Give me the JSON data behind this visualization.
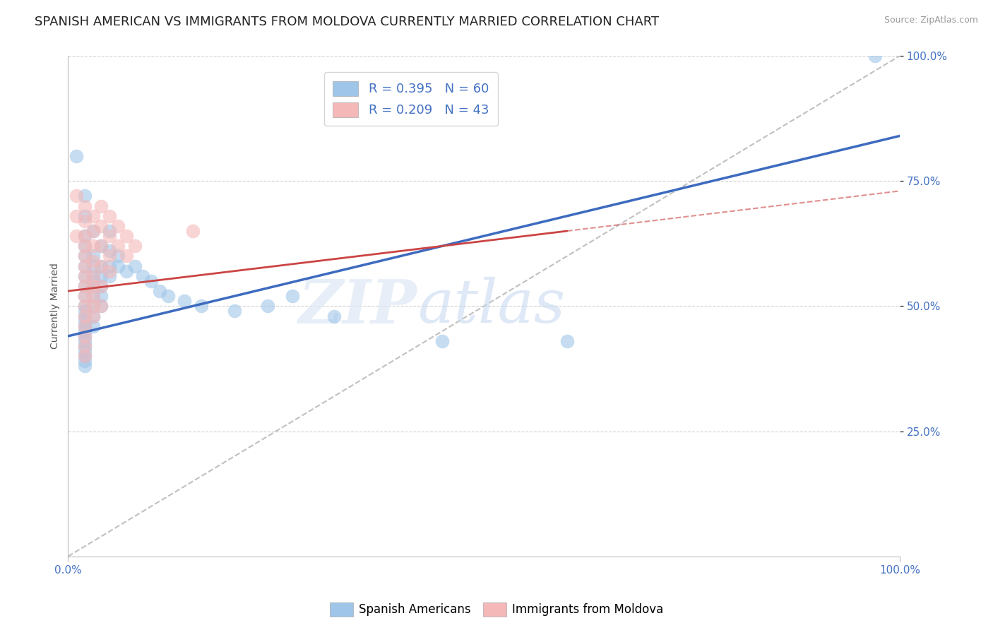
{
  "title": "SPANISH AMERICAN VS IMMIGRANTS FROM MOLDOVA CURRENTLY MARRIED CORRELATION CHART",
  "source": "Source: ZipAtlas.com",
  "ylabel": "Currently Married",
  "watermark_zip": "ZIP",
  "watermark_atlas": "atlas",
  "legend_blue_r": "R = 0.395",
  "legend_blue_n": "N = 60",
  "legend_pink_r": "R = 0.209",
  "legend_pink_n": "N = 43",
  "blue_color": "#9fc5e8",
  "pink_color": "#f4b8b8",
  "line_blue_color": "#3d6bbf",
  "line_pink_color": "#cc4444",
  "diag_color": "#c0c0c0",
  "grid_color": "#d0d0d0",
  "background_color": "#ffffff",
  "tick_color": "#4472c4",
  "blue_scatter": [
    [
      0.01,
      0.8
    ],
    [
      0.02,
      0.72
    ],
    [
      0.02,
      0.68
    ],
    [
      0.02,
      0.64
    ],
    [
      0.02,
      0.62
    ],
    [
      0.02,
      0.6
    ],
    [
      0.02,
      0.58
    ],
    [
      0.02,
      0.56
    ],
    [
      0.02,
      0.54
    ],
    [
      0.02,
      0.52
    ],
    [
      0.02,
      0.5
    ],
    [
      0.02,
      0.49
    ],
    [
      0.02,
      0.48
    ],
    [
      0.02,
      0.47
    ],
    [
      0.02,
      0.46
    ],
    [
      0.02,
      0.45
    ],
    [
      0.02,
      0.44
    ],
    [
      0.02,
      0.43
    ],
    [
      0.02,
      0.42
    ],
    [
      0.02,
      0.41
    ],
    [
      0.02,
      0.4
    ],
    [
      0.02,
      0.39
    ],
    [
      0.02,
      0.38
    ],
    [
      0.03,
      0.65
    ],
    [
      0.03,
      0.6
    ],
    [
      0.03,
      0.58
    ],
    [
      0.03,
      0.56
    ],
    [
      0.03,
      0.55
    ],
    [
      0.03,
      0.54
    ],
    [
      0.03,
      0.52
    ],
    [
      0.03,
      0.5
    ],
    [
      0.03,
      0.48
    ],
    [
      0.03,
      0.46
    ],
    [
      0.04,
      0.62
    ],
    [
      0.04,
      0.58
    ],
    [
      0.04,
      0.56
    ],
    [
      0.04,
      0.54
    ],
    [
      0.04,
      0.52
    ],
    [
      0.04,
      0.5
    ],
    [
      0.05,
      0.65
    ],
    [
      0.05,
      0.61
    ],
    [
      0.05,
      0.58
    ],
    [
      0.05,
      0.56
    ],
    [
      0.06,
      0.6
    ],
    [
      0.06,
      0.58
    ],
    [
      0.07,
      0.57
    ],
    [
      0.08,
      0.58
    ],
    [
      0.09,
      0.56
    ],
    [
      0.1,
      0.55
    ],
    [
      0.11,
      0.53
    ],
    [
      0.12,
      0.52
    ],
    [
      0.14,
      0.51
    ],
    [
      0.16,
      0.5
    ],
    [
      0.2,
      0.49
    ],
    [
      0.24,
      0.5
    ],
    [
      0.27,
      0.52
    ],
    [
      0.32,
      0.48
    ],
    [
      0.45,
      0.43
    ],
    [
      0.6,
      0.43
    ],
    [
      0.97,
      1.0
    ]
  ],
  "pink_scatter": [
    [
      0.01,
      0.72
    ],
    [
      0.01,
      0.68
    ],
    [
      0.01,
      0.64
    ],
    [
      0.02,
      0.7
    ],
    [
      0.02,
      0.67
    ],
    [
      0.02,
      0.64
    ],
    [
      0.02,
      0.62
    ],
    [
      0.02,
      0.6
    ],
    [
      0.02,
      0.58
    ],
    [
      0.02,
      0.56
    ],
    [
      0.02,
      0.54
    ],
    [
      0.02,
      0.52
    ],
    [
      0.02,
      0.5
    ],
    [
      0.02,
      0.48
    ],
    [
      0.02,
      0.46
    ],
    [
      0.02,
      0.44
    ],
    [
      0.02,
      0.42
    ],
    [
      0.02,
      0.4
    ],
    [
      0.03,
      0.68
    ],
    [
      0.03,
      0.65
    ],
    [
      0.03,
      0.62
    ],
    [
      0.03,
      0.59
    ],
    [
      0.03,
      0.56
    ],
    [
      0.03,
      0.54
    ],
    [
      0.03,
      0.52
    ],
    [
      0.03,
      0.5
    ],
    [
      0.03,
      0.48
    ],
    [
      0.04,
      0.7
    ],
    [
      0.04,
      0.66
    ],
    [
      0.04,
      0.62
    ],
    [
      0.04,
      0.58
    ],
    [
      0.04,
      0.54
    ],
    [
      0.04,
      0.5
    ],
    [
      0.05,
      0.68
    ],
    [
      0.05,
      0.64
    ],
    [
      0.05,
      0.6
    ],
    [
      0.05,
      0.57
    ],
    [
      0.06,
      0.66
    ],
    [
      0.06,
      0.62
    ],
    [
      0.07,
      0.64
    ],
    [
      0.07,
      0.6
    ],
    [
      0.08,
      0.62
    ],
    [
      0.15,
      0.65
    ]
  ],
  "xlim": [
    0.0,
    1.0
  ],
  "ylim": [
    0.0,
    1.0
  ],
  "ytick_positions": [
    0.25,
    0.5,
    0.75,
    1.0
  ],
  "ytick_labels": [
    "25.0%",
    "50.0%",
    "75.0%",
    "100.0%"
  ],
  "blue_line": [
    [
      0.0,
      0.44
    ],
    [
      1.0,
      0.84
    ]
  ],
  "pink_line": [
    [
      0.0,
      0.53
    ],
    [
      0.6,
      0.65
    ]
  ],
  "pink_line_dashed": [
    [
      0.6,
      0.65
    ],
    [
      1.0,
      0.73
    ]
  ],
  "title_fontsize": 13,
  "axis_label_fontsize": 10,
  "tick_fontsize": 11
}
